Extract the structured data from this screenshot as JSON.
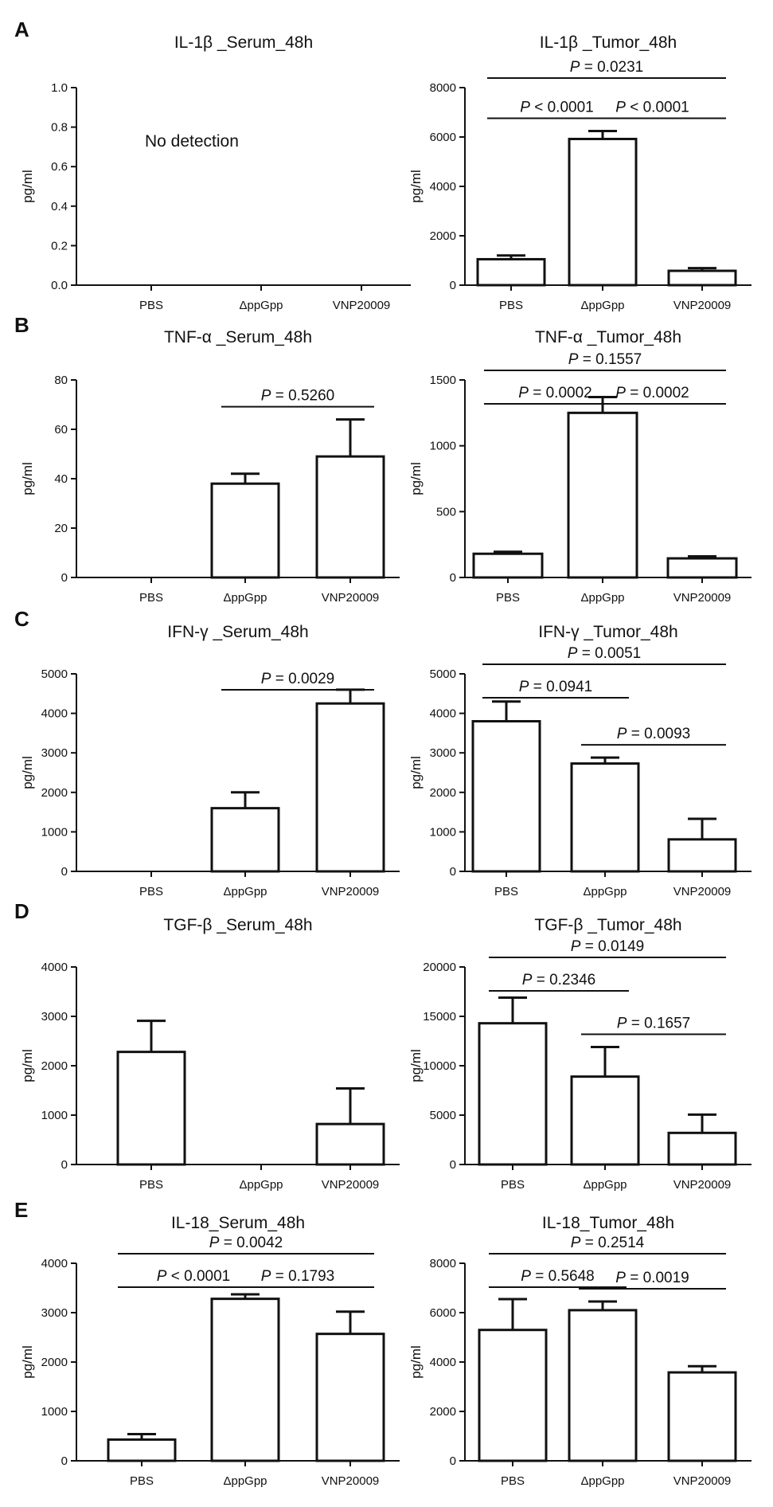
{
  "panel_letters": [
    "A",
    "B",
    "C",
    "D",
    "E"
  ],
  "chart_data": [
    {
      "type": "bar",
      "title": "IL-1β _Serum_48h",
      "ylabel": "pg/ml",
      "xlabel": "",
      "categories": [
        "PBS",
        "ΔppGpp",
        "VNP20009"
      ],
      "values": [
        null,
        null,
        null
      ],
      "errors": [
        null,
        null,
        null
      ],
      "ylim": [
        0,
        1.0
      ],
      "yticks": [
        "0.0",
        "0.2",
        "0.4",
        "0.6",
        "0.8",
        "1.0"
      ],
      "yticks_values": [
        0,
        0.2,
        0.4,
        0.6,
        0.8,
        1.0
      ],
      "annotation": "No detection",
      "comparisons": []
    },
    {
      "type": "bar",
      "title": "IL-1β _Tumor_48h",
      "ylabel": "pg/ml",
      "xlabel": "",
      "categories": [
        "PBS",
        "ΔppGpp",
        "VNP20009"
      ],
      "values": [
        1050,
        5920,
        580
      ],
      "errors": [
        150,
        320,
        110
      ],
      "ylim": [
        0,
        8000
      ],
      "yticks": [
        "0",
        "2000",
        "4000",
        "6000",
        "8000"
      ],
      "yticks_values": [
        0,
        2000,
        4000,
        6000,
        8000
      ],
      "comparisons": [
        {
          "from": 0,
          "to": 1,
          "p": "< 0.0001",
          "level": 0
        },
        {
          "from": 1,
          "to": 2,
          "p": "< 0.0001",
          "level": 0
        },
        {
          "from": 0,
          "to": 2,
          "p": "= 0.0231",
          "level": 1
        }
      ]
    },
    {
      "type": "bar",
      "title": "TNF-α _Serum_48h",
      "ylabel": "pg/ml",
      "xlabel": "",
      "categories": [
        "PBS",
        "ΔppGpp",
        "VNP20009"
      ],
      "values": [
        null,
        38,
        49
      ],
      "errors": [
        null,
        4,
        15
      ],
      "ylim": [
        0,
        80
      ],
      "yticks": [
        "0",
        "20",
        "40",
        "60",
        "80"
      ],
      "yticks_values": [
        0,
        20,
        40,
        60,
        80
      ],
      "comparisons": [
        {
          "from": 1,
          "to": 2,
          "p": "= 0.5260",
          "level": 0
        }
      ]
    },
    {
      "type": "bar",
      "title": "TNF-α _Tumor_48h",
      "ylabel": "pg/ml",
      "xlabel": "",
      "categories": [
        "PBS",
        "ΔppGpp",
        "VNP20009"
      ],
      "values": [
        180,
        1250,
        145
      ],
      "errors": [
        15,
        120,
        15
      ],
      "ylim": [
        0,
        1500
      ],
      "yticks": [
        "0",
        "500",
        "1000",
        "1500"
      ],
      "yticks_values": [
        0,
        500,
        1000,
        1500
      ],
      "comparisons": [
        {
          "from": 0,
          "to": 1,
          "p": "= 0.0002",
          "level": 0
        },
        {
          "from": 1,
          "to": 2,
          "p": "= 0.0002",
          "level": 0
        },
        {
          "from": 0,
          "to": 2,
          "p": "= 0.1557",
          "level": 1
        }
      ]
    },
    {
      "type": "bar",
      "title": "IFN-γ _Serum_48h",
      "ylabel": "pg/ml",
      "xlabel": "",
      "categories": [
        "PBS",
        "ΔppGpp",
        "VNP20009"
      ],
      "values": [
        null,
        1600,
        4250
      ],
      "errors": [
        null,
        400,
        350
      ],
      "ylim": [
        0,
        5000
      ],
      "yticks": [
        "0",
        "1000",
        "2000",
        "3000",
        "4000",
        "5000"
      ],
      "yticks_values": [
        0,
        1000,
        2000,
        3000,
        4000,
        5000
      ],
      "comparisons": [
        {
          "from": 1,
          "to": 2,
          "p": "= 0.0029",
          "level": 0
        }
      ]
    },
    {
      "type": "bar",
      "title": "IFN-γ _Tumor_48h",
      "ylabel": "pg/ml",
      "xlabel": "",
      "categories": [
        "PBS",
        "ΔppGpp",
        "VNP20009"
      ],
      "values": [
        3800,
        2730,
        810
      ],
      "errors": [
        500,
        150,
        520
      ],
      "ylim": [
        0,
        5000
      ],
      "yticks": [
        "0",
        "1000",
        "2000",
        "3000",
        "4000",
        "5000"
      ],
      "yticks_values": [
        0,
        1000,
        2000,
        3000,
        4000,
        5000
      ],
      "comparisons": [
        {
          "from": 0,
          "to": 1,
          "p": "= 0.0941",
          "level": 0
        },
        {
          "from": 1,
          "to": 2,
          "p": "= 0.0093",
          "level": 0
        },
        {
          "from": 0,
          "to": 2,
          "p": "= 0.0051",
          "level": 1
        }
      ]
    },
    {
      "type": "bar",
      "title": "TGF-β _Serum_48h",
      "ylabel": "pg/ml",
      "xlabel": "",
      "categories": [
        "PBS",
        "ΔppGpp",
        "VNP20009"
      ],
      "values": [
        2280,
        null,
        820
      ],
      "errors": [
        630,
        null,
        720
      ],
      "ylim": [
        0,
        4000
      ],
      "yticks": [
        "0",
        "1000",
        "2000",
        "3000",
        "4000"
      ],
      "yticks_values": [
        0,
        1000,
        2000,
        3000,
        4000
      ],
      "comparisons": []
    },
    {
      "type": "bar",
      "title": "TGF-β _Tumor_48h",
      "ylabel": "pg/ml",
      "xlabel": "",
      "categories": [
        "PBS",
        "ΔppGpp",
        "VNP20009"
      ],
      "values": [
        14300,
        8900,
        3200
      ],
      "errors": [
        2600,
        3000,
        1850
      ],
      "ylim": [
        0,
        20000
      ],
      "yticks": [
        "0",
        "5000",
        "10000",
        "15000",
        "20000"
      ],
      "yticks_values": [
        0,
        5000,
        10000,
        15000,
        20000
      ],
      "comparisons": [
        {
          "from": 0,
          "to": 1,
          "p": "= 0.2346",
          "level": 0
        },
        {
          "from": 1,
          "to": 2,
          "p": "= 0.1657",
          "level": 0
        },
        {
          "from": 0,
          "to": 2,
          "p": "= 0.0149",
          "level": 1
        }
      ]
    },
    {
      "type": "bar",
      "title": "IL-18_Serum_48h",
      "ylabel": "pg/ml",
      "xlabel": "",
      "categories": [
        "PBS",
        "ΔppGpp",
        "VNP20009"
      ],
      "values": [
        430,
        3280,
        2570
      ],
      "errors": [
        110,
        90,
        450
      ],
      "ylim": [
        0,
        4000
      ],
      "yticks": [
        "0",
        "1000",
        "2000",
        "3000",
        "4000"
      ],
      "yticks_values": [
        0,
        1000,
        2000,
        3000,
        4000
      ],
      "comparisons": [
        {
          "from": 0,
          "to": 1,
          "p": "< 0.0001",
          "level": 0
        },
        {
          "from": 1,
          "to": 2,
          "p": "= 0.1793",
          "level": 0
        },
        {
          "from": 0,
          "to": 2,
          "p": "= 0.0042",
          "level": 1
        }
      ]
    },
    {
      "type": "bar",
      "title": "IL-18_Tumor_48h",
      "ylabel": "pg/ml",
      "xlabel": "",
      "categories": [
        "PBS",
        "ΔppGpp",
        "VNP20009"
      ],
      "values": [
        5300,
        6100,
        3580
      ],
      "errors": [
        1250,
        350,
        250
      ],
      "ylim": [
        0,
        8000
      ],
      "yticks": [
        "0",
        "2000",
        "4000",
        "6000",
        "8000"
      ],
      "yticks_values": [
        0,
        2000,
        4000,
        6000,
        8000
      ],
      "comparisons": [
        {
          "from": 0,
          "to": 1,
          "p": "= 0.5648",
          "level": 0
        },
        {
          "from": 1,
          "to": 2,
          "p": "= 0.0019",
          "level": 0
        },
        {
          "from": 0,
          "to": 2,
          "p": "= 0.2514",
          "level": 1
        }
      ]
    }
  ]
}
